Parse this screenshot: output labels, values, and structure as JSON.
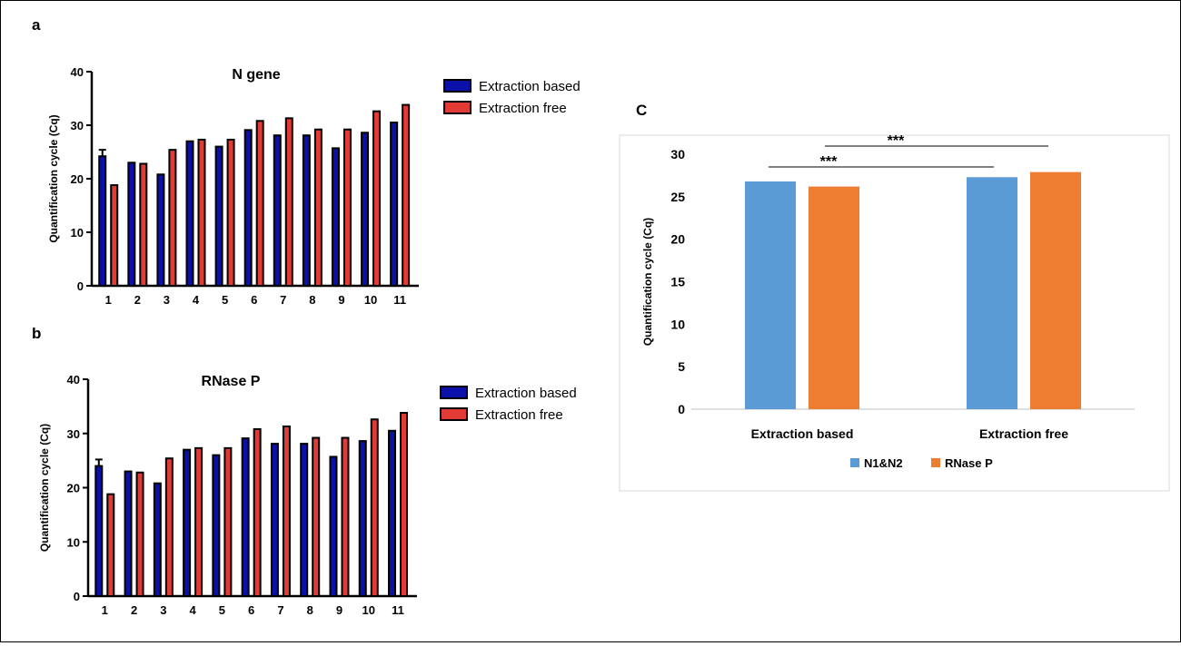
{
  "panels": {
    "a": "a",
    "b": "b",
    "c": "C"
  },
  "colors": {
    "extraction_based": "#0a10a8",
    "extraction_free": "#e23a35",
    "bar_outline": "#000000",
    "n1n2": "#5b9bd5",
    "rnase_p": "#ed7d31",
    "axis_c": "#bfbfbf",
    "frame_c": "#d9d9d9"
  },
  "chart_data": [
    {
      "type": "bar",
      "title": "N gene",
      "ylabel": "Quantification cycle (Cq)",
      "xlabel": "",
      "categories": [
        "1",
        "2",
        "3",
        "4",
        "5",
        "6",
        "7",
        "8",
        "9",
        "10",
        "11"
      ],
      "ylim": [
        0,
        40
      ],
      "yticks": [
        "0",
        "10",
        "20",
        "30",
        "40"
      ],
      "legend_position": "right",
      "series": [
        {
          "name": "Extraction based",
          "values": [
            24.2,
            23.0,
            20.8,
            27.0,
            26.0,
            29.1,
            28.1,
            28.1,
            25.7,
            28.6,
            30.5
          ],
          "errors": [
            1.2,
            0,
            0,
            0,
            0,
            0,
            0,
            0,
            0,
            0,
            0
          ]
        },
        {
          "name": "Extraction free",
          "values": [
            18.8,
            22.8,
            25.4,
            27.3,
            27.3,
            30.8,
            31.3,
            29.2,
            29.2,
            32.6,
            33.8
          ],
          "errors": [
            0,
            0,
            0,
            0,
            0,
            0,
            0,
            0,
            0,
            0,
            0
          ]
        }
      ]
    },
    {
      "type": "bar",
      "title": "RNase P",
      "ylabel": "Quantification cycle (Cq)",
      "xlabel": "",
      "categories": [
        "1",
        "2",
        "3",
        "4",
        "5",
        "6",
        "7",
        "8",
        "9",
        "10",
        "11"
      ],
      "ylim": [
        0,
        40
      ],
      "yticks": [
        "0",
        "10",
        "20",
        "30",
        "40"
      ],
      "legend_position": "right",
      "series": [
        {
          "name": "Extraction based",
          "values": [
            24.0,
            23.0,
            20.8,
            27.0,
            26.0,
            29.1,
            28.1,
            28.1,
            25.7,
            28.6,
            30.5
          ],
          "errors": [
            1.2,
            0,
            0,
            0,
            0,
            0,
            0,
            0,
            0,
            0,
            0
          ]
        },
        {
          "name": "Extraction free",
          "values": [
            18.8,
            22.8,
            25.4,
            27.3,
            27.3,
            30.8,
            31.3,
            29.2,
            29.2,
            32.6,
            33.8
          ],
          "errors": [
            0,
            0,
            0,
            0,
            0,
            0,
            0,
            0,
            0,
            0,
            0
          ]
        }
      ]
    },
    {
      "type": "bar",
      "title": "",
      "ylabel": "Quantification cycle (Cq)",
      "xlabel": "",
      "categories": [
        "Extraction based",
        "Extraction free"
      ],
      "ylim": [
        0,
        30
      ],
      "yticks": [
        "0",
        "5",
        "10",
        "15",
        "20",
        "25",
        "30"
      ],
      "legend_position": "bottom",
      "grid": false,
      "series": [
        {
          "name": "N1&N2",
          "values": [
            26.8,
            27.3
          ]
        },
        {
          "name": "RNase P",
          "values": [
            26.2,
            27.9
          ]
        }
      ],
      "annotations": [
        {
          "text": "***",
          "from": "N1&N2 Extraction based",
          "to": "N1&N2 Extraction free"
        },
        {
          "text": "***",
          "from": "RNase P Extraction based",
          "to": "RNase P Extraction free"
        }
      ]
    }
  ]
}
